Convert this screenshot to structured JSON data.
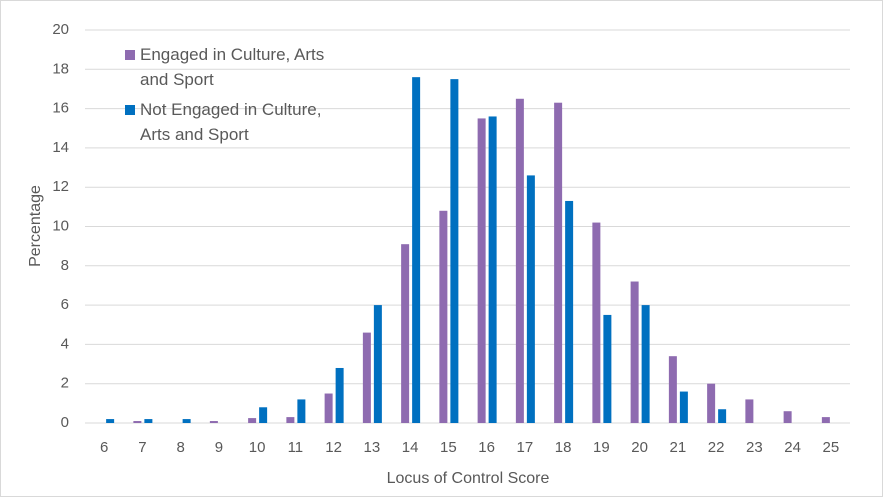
{
  "chart_data": {
    "type": "bar",
    "x_label": "Locus of Control Score",
    "y_label": "Percentage",
    "categories": [
      "6",
      "7",
      "8",
      "9",
      "10",
      "11",
      "12",
      "13",
      "14",
      "15",
      "16",
      "17",
      "18",
      "19",
      "20",
      "21",
      "22",
      "23",
      "24",
      "25"
    ],
    "series": [
      {
        "name": "Engaged in Culture, Arts and Sport",
        "color": "#8e6bb0",
        "values": [
          0,
          0.1,
          0,
          0.1,
          0.25,
          0.3,
          1.5,
          4.6,
          9.1,
          10.8,
          15.5,
          16.5,
          16.3,
          10.2,
          7.2,
          3.4,
          2.0,
          1.2,
          0.6,
          0.3
        ]
      },
      {
        "name": "Not Engaged in Culture, Arts and Sport",
        "color": "#0070c0",
        "values": [
          0.2,
          0.2,
          0.2,
          0,
          0.8,
          1.2,
          2.8,
          6.0,
          17.6,
          17.5,
          15.6,
          12.6,
          11.3,
          5.5,
          6.0,
          1.6,
          0.7,
          0,
          0,
          0
        ]
      }
    ],
    "ylim": [
      0,
      20
    ],
    "yticks": [
      0,
      2,
      4,
      6,
      8,
      10,
      12,
      14,
      16,
      18,
      20
    ],
    "grid": true,
    "legend": "top-left"
  }
}
